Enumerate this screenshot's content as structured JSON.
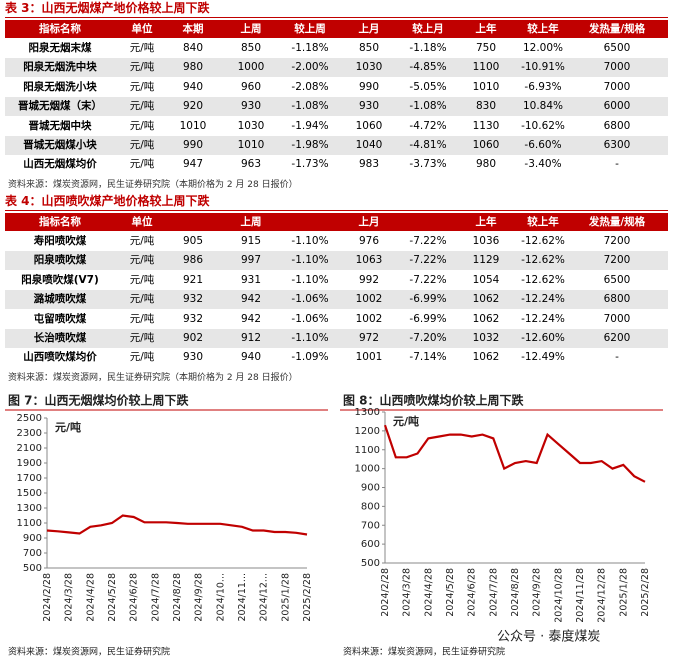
{
  "tables": [
    {
      "title": "表 3：山西无烟煤产地价格较上周下跌",
      "headers": [
        "指标名称",
        "单位",
        "本期",
        "上周",
        "较上周",
        "上月",
        "较上月",
        "上年",
        "较上年",
        "发热量/规格"
      ],
      "rows": [
        [
          "阳泉无烟末煤",
          "元/吨",
          "840",
          "850",
          "-1.18%",
          "850",
          "-1.18%",
          "750",
          "12.00%",
          "6500"
        ],
        [
          "阳泉无烟洗中块",
          "元/吨",
          "980",
          "1000",
          "-2.00%",
          "1030",
          "-4.85%",
          "1100",
          "-10.91%",
          "7000"
        ],
        [
          "阳泉无烟洗小块",
          "元/吨",
          "940",
          "960",
          "-2.08%",
          "990",
          "-5.05%",
          "1010",
          "-6.93%",
          "7000"
        ],
        [
          "晋城无烟煤（末）",
          "元/吨",
          "920",
          "930",
          "-1.08%",
          "930",
          "-1.08%",
          "830",
          "10.84%",
          "6000"
        ],
        [
          "晋城无烟中块",
          "元/吨",
          "1010",
          "1030",
          "-1.94%",
          "1060",
          "-4.72%",
          "1130",
          "-10.62%",
          "6800"
        ],
        [
          "晋城无烟煤小块",
          "元/吨",
          "990",
          "1010",
          "-1.98%",
          "1040",
          "-4.81%",
          "1060",
          "-6.60%",
          "6300"
        ],
        [
          "山西无烟煤均价",
          "元/吨",
          "947",
          "963",
          "-1.73%",
          "983",
          "-3.73%",
          "980",
          "-3.40%",
          "-"
        ]
      ],
      "source": "资料来源：煤炭资源网，民生证券研究院（本期价格为 2 月 28 日报价）"
    },
    {
      "title": "表 4：山西喷吹煤产地价格较上周下跌",
      "headers": [
        "指标名称",
        "单位",
        null,
        "上周",
        null,
        "上月",
        null,
        "上年",
        "较上年",
        "发热量/规格"
      ],
      "rows": [
        [
          "寿阳喷吹煤",
          "元/吨",
          "905",
          "915",
          "-1.10%",
          "976",
          "-7.22%",
          "1036",
          "-12.62%",
          "7200"
        ],
        [
          "阳泉喷吹煤",
          "元/吨",
          "986",
          "997",
          "-1.10%",
          "1063",
          "-7.22%",
          "1129",
          "-12.62%",
          "7200"
        ],
        [
          "阳泉喷吹煤(V7)",
          "元/吨",
          "921",
          "931",
          "-1.10%",
          "992",
          "-7.22%",
          "1054",
          "-12.62%",
          "6500"
        ],
        [
          "潞城喷吹煤",
          "元/吨",
          "932",
          "942",
          "-1.06%",
          "1002",
          "-6.99%",
          "1062",
          "-12.24%",
          "6800"
        ],
        [
          "屯留喷吹煤",
          "元/吨",
          "932",
          "942",
          "-1.06%",
          "1002",
          "-6.99%",
          "1062",
          "-12.24%",
          "7000"
        ],
        [
          "长治喷吹煤",
          "元/吨",
          "902",
          "912",
          "-1.10%",
          "972",
          "-7.20%",
          "1032",
          "-12.60%",
          "6200"
        ],
        [
          "山西喷吹煤均价",
          "元/吨",
          "930",
          "940",
          "-1.09%",
          "1001",
          "-7.14%",
          "1062",
          "-12.49%",
          "-"
        ]
      ],
      "source": "资料来源：煤炭资源网，民生证券研究院（本期价格为 2 月 28 日报价）"
    }
  ],
  "chart_data": [
    {
      "type": "line",
      "title": "图 7：山西无烟煤均价较上周下跌",
      "unit": "元/吨",
      "color": "#c00000",
      "categories": [
        "2024/2/28",
        null,
        "2024/3/28",
        null,
        "2024/4/28",
        null,
        "2024/5/28",
        null,
        "2024/6/28",
        null,
        "2024/7/28",
        null,
        "2024/8/28",
        null,
        "2024/9/28",
        null,
        "2024/10...",
        null,
        "2024/11...",
        null,
        "2024/12...",
        null,
        "2025/1/28",
        null,
        "2025/2/28"
      ],
      "values": [
        1000,
        990,
        975,
        960,
        1050,
        1070,
        1100,
        1200,
        1180,
        1110,
        1110,
        1110,
        1100,
        1090,
        1090,
        1090,
        1090,
        1070,
        1050,
        1000,
        1000,
        980,
        980,
        970,
        947
      ],
      "ylim": [
        500,
        2500
      ],
      "yticks": [
        500,
        700,
        900,
        1100,
        1300,
        1500,
        1700,
        1900,
        2100,
        2300,
        2500
      ],
      "source": "资料来源：煤炭资源网，民生证券研究院"
    },
    {
      "type": "line",
      "title": "图 8：山西喷吹煤均价较上周下跌",
      "unit": "元/吨",
      "color": "#c00000",
      "categories": [
        "2024/2/28",
        null,
        "2024/3/28",
        null,
        "2024/4/28",
        null,
        "2024/5/28",
        null,
        "2024/6/28",
        null,
        "2024/7/28",
        null,
        "2024/8/28",
        null,
        "2024/9/28",
        null,
        "2024/10/28",
        null,
        "2024/11/28",
        null,
        "2024/12/28",
        null,
        "2025/1/28",
        null,
        "2025/2/28"
      ],
      "values": [
        1230,
        1060,
        1060,
        1080,
        1160,
        1170,
        1180,
        1180,
        1170,
        1180,
        1160,
        1000,
        1030,
        1040,
        1030,
        1180,
        1130,
        1080,
        1030,
        1030,
        1040,
        1000,
        1020,
        960,
        930
      ],
      "ylim": [
        500,
        1300
      ],
      "yticks": [
        500,
        600,
        700,
        800,
        900,
        1000,
        1100,
        1200,
        1300
      ],
      "source": "资料来源：煤炭资源网，民生证券研究院"
    }
  ],
  "watermark": "公众号 · 泰度煤炭"
}
